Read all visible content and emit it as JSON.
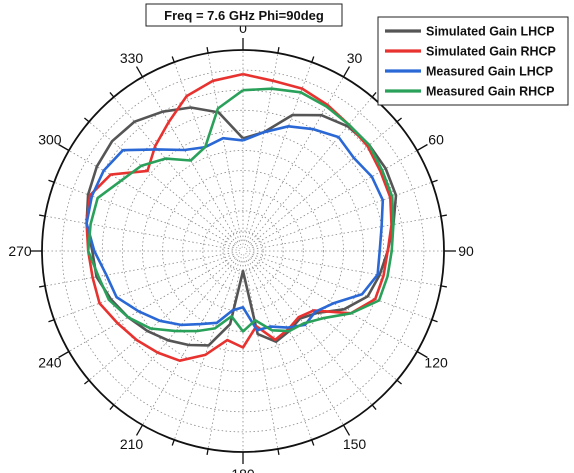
{
  "chart_data": {
    "type": "polar-line",
    "title": "Freq = 7.6 GHz Phi=90deg",
    "angle_ticks": [
      "0",
      "30",
      "60",
      "90",
      "120",
      "150",
      "180",
      "210",
      "240",
      "270",
      "300",
      "330"
    ],
    "angle_values": [
      0,
      30,
      60,
      90,
      120,
      150,
      180,
      210,
      240,
      270,
      300,
      330
    ],
    "radial_range": [
      0,
      1
    ],
    "grid": true,
    "legend_position": "top-right",
    "series": [
      {
        "name": "Simulated Gain LHCP",
        "color": "#555555",
        "points": [
          [
            0,
            0.56
          ],
          [
            10,
            0.6
          ],
          [
            20,
            0.72
          ],
          [
            30,
            0.78
          ],
          [
            40,
            0.81
          ],
          [
            50,
            0.82
          ],
          [
            60,
            0.82
          ],
          [
            70,
            0.81
          ],
          [
            80,
            0.76
          ],
          [
            90,
            0.72
          ],
          [
            100,
            0.69
          ],
          [
            110,
            0.66
          ],
          [
            120,
            0.58
          ],
          [
            130,
            0.48
          ],
          [
            140,
            0.44
          ],
          [
            150,
            0.46
          ],
          [
            160,
            0.48
          ],
          [
            170,
            0.42
          ],
          [
            180,
            0.1
          ],
          [
            190,
            0.37
          ],
          [
            200,
            0.5
          ],
          [
            210,
            0.54
          ],
          [
            220,
            0.58
          ],
          [
            230,
            0.62
          ],
          [
            240,
            0.66
          ],
          [
            250,
            0.7
          ],
          [
            260,
            0.74
          ],
          [
            270,
            0.75
          ],
          [
            280,
            0.79
          ],
          [
            290,
            0.82
          ],
          [
            300,
            0.84
          ],
          [
            310,
            0.85
          ],
          [
            320,
            0.84
          ],
          [
            330,
            0.8
          ],
          [
            340,
            0.76
          ],
          [
            350,
            0.7
          ],
          [
            360,
            0.56
          ]
        ]
      },
      {
        "name": "Simulated Gain RHCP",
        "color": "#e8322f",
        "points": [
          [
            0,
            0.88
          ],
          [
            10,
            0.86
          ],
          [
            20,
            0.86
          ],
          [
            30,
            0.84
          ],
          [
            40,
            0.82
          ],
          [
            50,
            0.81
          ],
          [
            60,
            0.79
          ],
          [
            70,
            0.78
          ],
          [
            80,
            0.75
          ],
          [
            90,
            0.72
          ],
          [
            100,
            0.71
          ],
          [
            110,
            0.7
          ],
          [
            120,
            0.62
          ],
          [
            130,
            0.46
          ],
          [
            140,
            0.43
          ],
          [
            150,
            0.45
          ],
          [
            160,
            0.47
          ],
          [
            170,
            0.38
          ],
          [
            180,
            0.48
          ],
          [
            190,
            0.45
          ],
          [
            200,
            0.55
          ],
          [
            210,
            0.63
          ],
          [
            220,
            0.66
          ],
          [
            230,
            0.69
          ],
          [
            240,
            0.72
          ],
          [
            250,
            0.76
          ],
          [
            260,
            0.76
          ],
          [
            270,
            0.77
          ],
          [
            280,
            0.79
          ],
          [
            290,
            0.81
          ],
          [
            300,
            0.76
          ],
          [
            310,
            0.62
          ],
          [
            320,
            0.68
          ],
          [
            330,
            0.74
          ],
          [
            340,
            0.82
          ],
          [
            350,
            0.86
          ],
          [
            360,
            0.88
          ]
        ]
      },
      {
        "name": "Measured Gain LHCP",
        "color": "#2a68d6",
        "points": [
          [
            0,
            0.55
          ],
          [
            10,
            0.6
          ],
          [
            20,
            0.66
          ],
          [
            30,
            0.7
          ],
          [
            40,
            0.74
          ],
          [
            50,
            0.72
          ],
          [
            60,
            0.74
          ],
          [
            70,
            0.74
          ],
          [
            80,
            0.7
          ],
          [
            90,
            0.68
          ],
          [
            100,
            0.68
          ],
          [
            110,
            0.63
          ],
          [
            120,
            0.52
          ],
          [
            130,
            0.47
          ],
          [
            140,
            0.48
          ],
          [
            150,
            0.44
          ],
          [
            160,
            0.4
          ],
          [
            170,
            0.4
          ],
          [
            180,
            0.28
          ],
          [
            190,
            0.3
          ],
          [
            200,
            0.38
          ],
          [
            210,
            0.42
          ],
          [
            220,
            0.48
          ],
          [
            230,
            0.54
          ],
          [
            240,
            0.6
          ],
          [
            250,
            0.67
          ],
          [
            260,
            0.69
          ],
          [
            270,
            0.74
          ],
          [
            280,
            0.79
          ],
          [
            290,
            0.8
          ],
          [
            300,
            0.8
          ],
          [
            310,
            0.78
          ],
          [
            320,
            0.66
          ],
          [
            330,
            0.58
          ],
          [
            340,
            0.55
          ],
          [
            350,
            0.57
          ],
          [
            360,
            0.55
          ]
        ]
      },
      {
        "name": "Measured Gain RHCP",
        "color": "#2aa15a",
        "points": [
          [
            0,
            0.8
          ],
          [
            10,
            0.82
          ],
          [
            20,
            0.84
          ],
          [
            30,
            0.83
          ],
          [
            40,
            0.82
          ],
          [
            50,
            0.82
          ],
          [
            60,
            0.8
          ],
          [
            70,
            0.79
          ],
          [
            80,
            0.76
          ],
          [
            90,
            0.74
          ],
          [
            100,
            0.73
          ],
          [
            110,
            0.72
          ],
          [
            120,
            0.62
          ],
          [
            130,
            0.52
          ],
          [
            140,
            0.47
          ],
          [
            150,
            0.46
          ],
          [
            160,
            0.42
          ],
          [
            170,
            0.35
          ],
          [
            180,
            0.4
          ],
          [
            190,
            0.33
          ],
          [
            200,
            0.41
          ],
          [
            210,
            0.46
          ],
          [
            220,
            0.52
          ],
          [
            230,
            0.6
          ],
          [
            240,
            0.66
          ],
          [
            250,
            0.71
          ],
          [
            260,
            0.73
          ],
          [
            270,
            0.77
          ],
          [
            280,
            0.77
          ],
          [
            290,
            0.77
          ],
          [
            300,
            0.7
          ],
          [
            310,
            0.66
          ],
          [
            320,
            0.6
          ],
          [
            330,
            0.52
          ],
          [
            340,
            0.55
          ],
          [
            350,
            0.72
          ],
          [
            360,
            0.8
          ]
        ]
      }
    ]
  }
}
